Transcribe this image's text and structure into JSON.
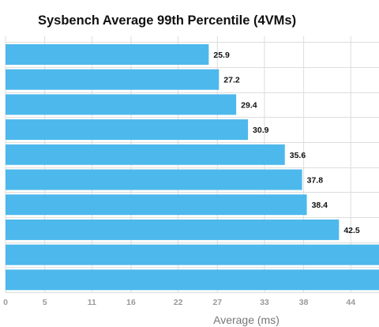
{
  "chart_data": {
    "type": "bar",
    "orientation": "horizontal",
    "title": "Sysbench Average 99th Percentile (4VMs)",
    "xlabel": "Average (ms)",
    "ylabel": "",
    "categories": [
      "",
      "",
      "",
      "",
      "",
      "",
      "",
      "",
      "",
      ""
    ],
    "values": [
      25.9,
      27.2,
      29.4,
      30.9,
      35.6,
      37.8,
      38.4,
      42.5,
      48.0,
      48.0
    ],
    "value_labels": [
      "25.9",
      "27.2",
      "29.4",
      "30.9",
      "35.6",
      "37.8",
      "38.4",
      "42.5",
      "",
      ""
    ],
    "x_ticks": [
      0,
      5,
      11,
      16,
      22,
      27,
      33,
      38,
      44
    ],
    "xlim": [
      0,
      47.6
    ],
    "grid": true,
    "legend": "none",
    "bar_color": "#4db8ec",
    "grid_color": "#dddddd"
  }
}
